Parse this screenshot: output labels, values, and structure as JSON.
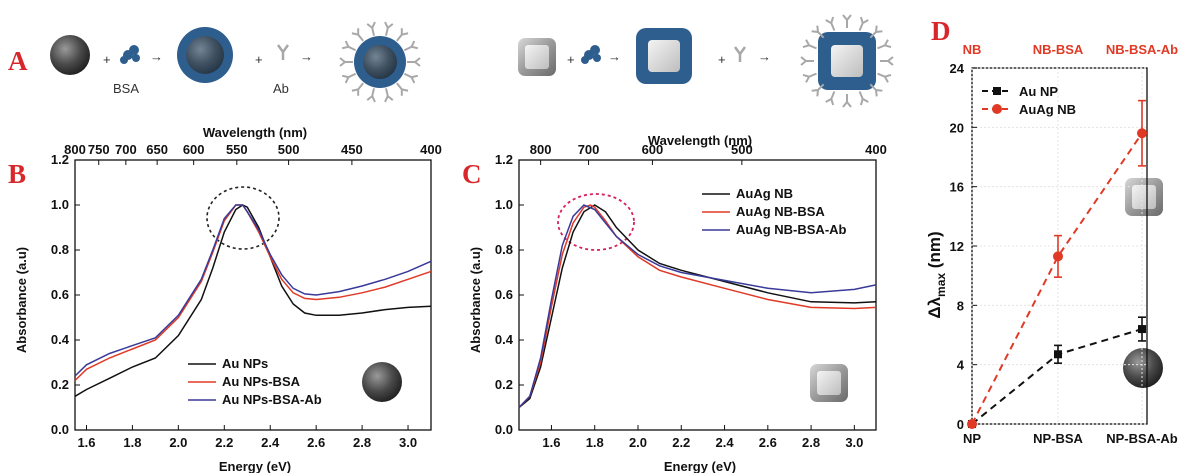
{
  "scheme": {
    "label": "A",
    "bsa_label": "BSA",
    "ab_label": "Ab",
    "plus": "+",
    "arrow": "→",
    "colors": {
      "protein": "#2e5e8e",
      "antibody": "#a8a8a8",
      "sphere": "#4a4a4a",
      "box": "#b8b8b8"
    }
  },
  "chart_data": [
    {
      "id": "B",
      "panel_label": "B",
      "type": "line",
      "xlabel": "Energy (eV)",
      "ylabel": "Absorbance (a.u)",
      "top_axis_label": "Wavelength (nm)",
      "xlim": [
        1.55,
        3.1
      ],
      "ylim": [
        0.0,
        1.2
      ],
      "x_ticks": [
        "1.6",
        "1.8",
        "2.0",
        "2.2",
        "2.4",
        "2.6",
        "2.8",
        "3.0"
      ],
      "y_ticks": [
        "0.0",
        "0.2",
        "0.4",
        "0.6",
        "0.8",
        "1.0",
        "1.2"
      ],
      "top_ticks": [
        "800",
        "750",
        "700",
        "650",
        "600",
        "550",
        "500",
        "450",
        "400"
      ],
      "series": [
        {
          "name": "Au NPs",
          "color": "#111111",
          "x": [
            1.55,
            1.6,
            1.7,
            1.8,
            1.9,
            2.0,
            2.1,
            2.15,
            2.2,
            2.25,
            2.28,
            2.3,
            2.35,
            2.4,
            2.45,
            2.5,
            2.55,
            2.6,
            2.7,
            2.8,
            2.9,
            3.0,
            3.1
          ],
          "y": [
            0.15,
            0.18,
            0.23,
            0.28,
            0.32,
            0.42,
            0.58,
            0.72,
            0.88,
            0.98,
            1.0,
            0.99,
            0.9,
            0.77,
            0.64,
            0.56,
            0.52,
            0.51,
            0.51,
            0.52,
            0.535,
            0.545,
            0.55
          ]
        },
        {
          "name": "Au NPs-BSA",
          "color": "#e03a26",
          "x": [
            1.55,
            1.6,
            1.7,
            1.8,
            1.9,
            2.0,
            2.1,
            2.15,
            2.2,
            2.25,
            2.28,
            2.3,
            2.35,
            2.4,
            2.45,
            2.5,
            2.55,
            2.6,
            2.7,
            2.8,
            2.9,
            3.0,
            3.1
          ],
          "y": [
            0.22,
            0.27,
            0.32,
            0.36,
            0.4,
            0.5,
            0.66,
            0.79,
            0.93,
            1.0,
            1.0,
            0.97,
            0.88,
            0.77,
            0.67,
            0.61,
            0.585,
            0.58,
            0.59,
            0.61,
            0.635,
            0.67,
            0.705
          ]
        },
        {
          "name": "Au NPs-BSA-Ab",
          "color": "#3a3a9a",
          "x": [
            1.55,
            1.6,
            1.7,
            1.8,
            1.9,
            2.0,
            2.1,
            2.15,
            2.2,
            2.25,
            2.28,
            2.3,
            2.35,
            2.4,
            2.45,
            2.5,
            2.55,
            2.6,
            2.7,
            2.8,
            2.9,
            3.0,
            3.1
          ],
          "y": [
            0.24,
            0.29,
            0.34,
            0.375,
            0.41,
            0.51,
            0.67,
            0.8,
            0.94,
            1.0,
            1.0,
            0.97,
            0.89,
            0.78,
            0.69,
            0.63,
            0.605,
            0.6,
            0.615,
            0.64,
            0.67,
            0.705,
            0.75
          ]
        }
      ]
    },
    {
      "id": "C",
      "panel_label": "C",
      "type": "line",
      "xlabel": "Energy (eV)",
      "ylabel": "Absorbance (a.u)",
      "top_axis_label": "Wavelength (nm)",
      "xlim": [
        1.45,
        3.1
      ],
      "ylim": [
        0.0,
        1.2
      ],
      "x_ticks": [
        "1.6",
        "1.8",
        "2.0",
        "2.2",
        "2.4",
        "2.6",
        "2.8",
        "3.0"
      ],
      "y_ticks": [
        "0.0",
        "0.2",
        "0.4",
        "0.6",
        "0.8",
        "1.0",
        "1.2"
      ],
      "top_ticks": [
        "800",
        "700",
        "600",
        "500",
        "400"
      ],
      "series": [
        {
          "name": "AuAg NB",
          "color": "#111111",
          "x": [
            1.45,
            1.5,
            1.55,
            1.6,
            1.65,
            1.7,
            1.75,
            1.8,
            1.85,
            1.9,
            2.0,
            2.1,
            2.2,
            2.4,
            2.6,
            2.8,
            3.0,
            3.1
          ],
          "y": [
            0.1,
            0.14,
            0.28,
            0.5,
            0.72,
            0.88,
            0.97,
            1.0,
            0.97,
            0.9,
            0.8,
            0.74,
            0.71,
            0.66,
            0.61,
            0.57,
            0.565,
            0.57
          ]
        },
        {
          "name": "AuAg NB-BSA",
          "color": "#e03a26",
          "x": [
            1.45,
            1.5,
            1.55,
            1.6,
            1.65,
            1.7,
            1.75,
            1.78,
            1.8,
            1.85,
            1.9,
            2.0,
            2.1,
            2.2,
            2.4,
            2.6,
            2.8,
            3.0,
            3.1
          ],
          "y": [
            0.1,
            0.15,
            0.3,
            0.55,
            0.78,
            0.92,
            0.99,
            1.0,
            0.99,
            0.93,
            0.86,
            0.77,
            0.71,
            0.68,
            0.63,
            0.58,
            0.545,
            0.54,
            0.545
          ]
        },
        {
          "name": "AuAg NB-BSA-Ab",
          "color": "#3a3a9a",
          "x": [
            1.45,
            1.5,
            1.55,
            1.6,
            1.65,
            1.7,
            1.75,
            1.8,
            1.85,
            1.9,
            2.0,
            2.1,
            2.2,
            2.4,
            2.6,
            2.8,
            3.0,
            3.1
          ],
          "y": [
            0.1,
            0.15,
            0.32,
            0.58,
            0.82,
            0.95,
            1.0,
            0.98,
            0.92,
            0.86,
            0.78,
            0.73,
            0.7,
            0.665,
            0.63,
            0.61,
            0.625,
            0.645
          ]
        }
      ]
    },
    {
      "id": "D",
      "panel_label": "D",
      "type": "line",
      "xlabel": "",
      "ylabel": "Δλmax (nm)",
      "ylabel_main": "Δλ",
      "ylabel_sub": "max",
      "ylabel_unit": " (nm)",
      "ylim": [
        0,
        24
      ],
      "y_ticks": [
        "0",
        "4",
        "8",
        "12",
        "16",
        "20",
        "24"
      ],
      "categories": [
        "NP",
        "NP-BSA",
        "NP-BSA-Ab"
      ],
      "top_categories": [
        "NB",
        "NB-BSA",
        "NB-BSA-Ab"
      ],
      "series": [
        {
          "name": "Au NP",
          "color": "#111111",
          "marker": "square",
          "values": [
            0.0,
            4.7,
            6.4
          ],
          "errors": [
            0,
            0.6,
            0.8
          ]
        },
        {
          "name": "AuAg NB",
          "color": "#e03a26",
          "marker": "circle",
          "values": [
            0.0,
            11.3,
            19.6
          ],
          "errors": [
            0,
            1.4,
            2.2
          ]
        }
      ]
    }
  ]
}
